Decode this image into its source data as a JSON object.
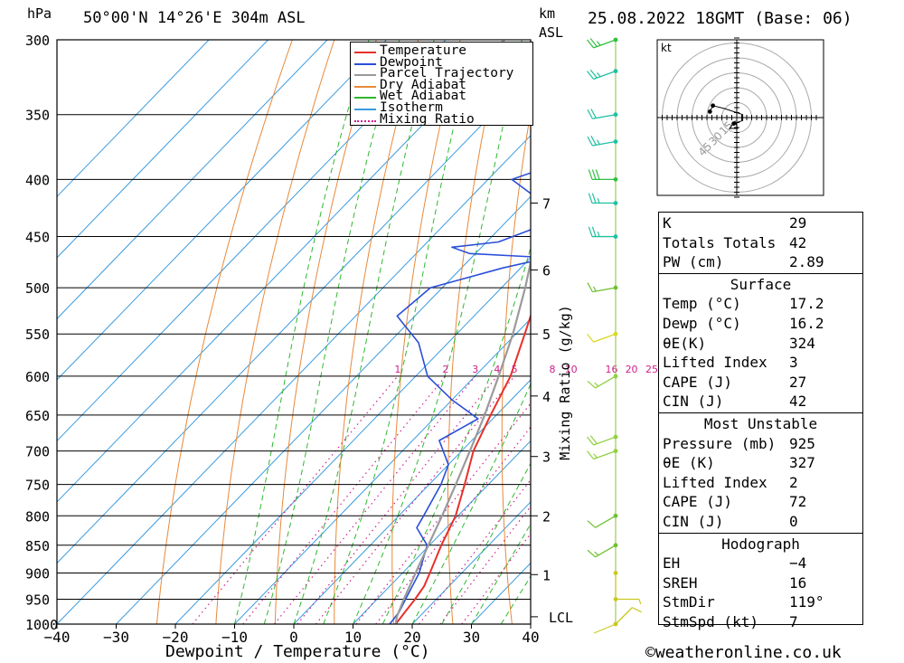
{
  "header": {
    "pressure_unit": "hPa",
    "location": "50°00'N 14°26'E 304m ASL",
    "height_unit_top": "km",
    "height_unit_bottom": "ASL",
    "datetime": "25.08.2022 18GMT (Base: 06)"
  },
  "footer": {
    "xlabel": "Dewpoint / Temperature (°C)",
    "copyright": "©weatheronline.co.uk"
  },
  "legend": [
    {
      "label": "Temperature",
      "color": "#e8302a",
      "style": "solid"
    },
    {
      "label": "Dewpoint",
      "color": "#2a4fd8",
      "style": "solid"
    },
    {
      "label": "Parcel Trajectory",
      "color": "#9a9a9a",
      "style": "solid"
    },
    {
      "label": "Dry Adiabat",
      "color": "#e8893a",
      "style": "solid"
    },
    {
      "label": "Wet Adiabat",
      "color": "#2fb82f",
      "style": "solid"
    },
    {
      "label": "Isotherm",
      "color": "#3a9be0",
      "style": "solid"
    },
    {
      "label": "Mixing Ratio",
      "color": "#d0208c",
      "style": "dotted"
    }
  ],
  "chart_data": {
    "type": "line",
    "subtype": "skew-T log-P diagram",
    "xlabel": "Dewpoint / Temperature (°C)",
    "ylabel": "hPa",
    "y2label": "Mixing Ratio (g/kg)",
    "xlim": [
      -40,
      40
    ],
    "ylim": [
      1000,
      300
    ],
    "y_scale": "log",
    "x_ticks": [
      -40,
      -30,
      -20,
      -10,
      0,
      10,
      20,
      30,
      40
    ],
    "x_tick_labels": [
      "−40",
      "−30",
      "−20",
      "−10",
      "0",
      "10",
      "20",
      "30",
      "40"
    ],
    "pressure_levels": [
      300,
      350,
      400,
      450,
      500,
      550,
      600,
      650,
      700,
      750,
      800,
      850,
      900,
      950,
      1000
    ],
    "height_km_ticks": [
      {
        "km": 1,
        "p": 903
      },
      {
        "km": 2,
        "p": 800
      },
      {
        "km": 3,
        "p": 708
      },
      {
        "km": 4,
        "p": 625
      },
      {
        "km": 5,
        "p": 550
      },
      {
        "km": 6,
        "p": 482
      },
      {
        "km": 7,
        "p": 420
      }
    ],
    "lcl": {
      "label": "LCL",
      "p": 985
    },
    "mixing_ratio_labels": [
      "1",
      "2",
      "3",
      "4",
      "5",
      "8",
      "10",
      "16",
      "20",
      "25"
    ],
    "mixing_ratio_values": [
      1,
      2,
      3,
      4,
      5,
      8,
      10,
      16,
      20,
      25
    ],
    "mixing_ratio_label_p": 600,
    "isotherms": [
      -110,
      -100,
      -90,
      -80,
      -70,
      -60,
      -50,
      -40,
      -30,
      -20,
      -10,
      0,
      10,
      20,
      30,
      40
    ],
    "dry_adiabats_K": [
      250,
      260,
      270,
      280,
      290,
      300,
      310,
      320,
      330,
      340,
      350,
      360,
      370,
      380,
      390,
      400,
      410,
      420,
      430,
      440
    ],
    "wet_adiabats_C": [
      -10,
      -5,
      0,
      5,
      10,
      15,
      20,
      25,
      30,
      35
    ],
    "series": [
      {
        "name": "Temperature",
        "points": [
          {
            "p": 1000,
            "t": 17.2
          },
          {
            "p": 975,
            "t": 16.8
          },
          {
            "p": 950,
            "t": 16.4
          },
          {
            "p": 925,
            "t": 15.8
          },
          {
            "p": 900,
            "t": 14.6
          },
          {
            "p": 850,
            "t": 12.0
          },
          {
            "p": 800,
            "t": 9.6
          },
          {
            "p": 750,
            "t": 6.0
          },
          {
            "p": 700,
            "t": 2.0
          },
          {
            "p": 650,
            "t": -1.0
          },
          {
            "p": 600,
            "t": -4.0
          },
          {
            "p": 550,
            "t": -8.5
          },
          {
            "p": 500,
            "t": -13.5
          },
          {
            "p": 470,
            "t": -18.0
          },
          {
            "p": 450,
            "t": -19.5
          },
          {
            "p": 430,
            "t": -23.0
          },
          {
            "p": 400,
            "t": -27.0
          },
          {
            "p": 350,
            "t": -35.0
          },
          {
            "p": 300,
            "t": -44.0
          }
        ]
      },
      {
        "name": "Dewpoint",
        "points": [
          {
            "p": 1000,
            "t": 16.2
          },
          {
            "p": 975,
            "t": 15.8
          },
          {
            "p": 950,
            "t": 14.8
          },
          {
            "p": 925,
            "t": 13.8
          },
          {
            "p": 900,
            "t": 12.8
          },
          {
            "p": 850,
            "t": 9.6
          },
          {
            "p": 820,
            "t": 5.0
          },
          {
            "p": 800,
            "t": 4.2
          },
          {
            "p": 750,
            "t": 2.0
          },
          {
            "p": 720,
            "t": 0.0
          },
          {
            "p": 685,
            "t": -5.5
          },
          {
            "p": 655,
            "t": -2.5
          },
          {
            "p": 630,
            "t": -10.0
          },
          {
            "p": 600,
            "t": -18.0
          },
          {
            "p": 560,
            "t": -25.0
          },
          {
            "p": 530,
            "t": -33.0
          },
          {
            "p": 500,
            "t": -32.0
          },
          {
            "p": 480,
            "t": -23.0
          },
          {
            "p": 470,
            "t": -17.0
          },
          {
            "p": 466,
            "t": -31.0
          },
          {
            "p": 460,
            "t": -35.0
          },
          {
            "p": 455,
            "t": -28.0
          },
          {
            "p": 420,
            "t": -17.0
          },
          {
            "p": 415,
            "t": -29.0
          },
          {
            "p": 400,
            "t": -36.0
          },
          {
            "p": 390,
            "t": -32.0
          },
          {
            "p": 350,
            "t": -38.0
          },
          {
            "p": 300,
            "t": -46.0
          }
        ]
      },
      {
        "name": "Parcel Trajectory",
        "points": [
          {
            "p": 1000,
            "t": 17.2
          },
          {
            "p": 985,
            "t": 16.2
          },
          {
            "p": 950,
            "t": 14.5
          },
          {
            "p": 900,
            "t": 12.2
          },
          {
            "p": 850,
            "t": 9.8
          },
          {
            "p": 800,
            "t": 7.3
          },
          {
            "p": 750,
            "t": 4.5
          },
          {
            "p": 700,
            "t": 1.4
          },
          {
            "p": 650,
            "t": -2.0
          },
          {
            "p": 600,
            "t": -6.0
          },
          {
            "p": 550,
            "t": -10.5
          },
          {
            "p": 500,
            "t": -16.0
          },
          {
            "p": 450,
            "t": -22.5
          },
          {
            "p": 400,
            "t": -30.0
          },
          {
            "p": 350,
            "t": -39.5
          },
          {
            "p": 300,
            "t": -51.0
          }
        ]
      }
    ]
  },
  "wind_profile": [
    {
      "p": 1000,
      "dir": 45,
      "kt": 10,
      "color": "#c8c820"
    },
    {
      "p": 950,
      "dir": 90,
      "kt": 5,
      "color": "#c8c820"
    },
    {
      "p": 900,
      "dir": 180,
      "kt": 3,
      "color": "#c8c820"
    },
    {
      "p": 850,
      "dir": 240,
      "kt": 15,
      "color": "#70c030"
    },
    {
      "p": 800,
      "dir": 240,
      "kt": 12,
      "color": "#70c030"
    },
    {
      "p": 700,
      "dir": 250,
      "kt": 18,
      "color": "#90d040"
    },
    {
      "p": 680,
      "dir": 250,
      "kt": 20,
      "color": "#90d040"
    },
    {
      "p": 600,
      "dir": 240,
      "kt": 15,
      "color": "#90d040"
    },
    {
      "p": 550,
      "dir": 250,
      "kt": 10,
      "color": "#d8d820"
    },
    {
      "p": 500,
      "dir": 260,
      "kt": 15,
      "color": "#70c030"
    },
    {
      "p": 450,
      "dir": 270,
      "kt": 25,
      "color": "#20c0a0"
    },
    {
      "p": 420,
      "dir": 270,
      "kt": 25,
      "color": "#20c0a0"
    },
    {
      "p": 400,
      "dir": 270,
      "kt": 30,
      "color": "#30c040"
    },
    {
      "p": 370,
      "dir": 260,
      "kt": 25,
      "color": "#20c0a0"
    },
    {
      "p": 350,
      "dir": 260,
      "kt": 20,
      "color": "#20c0a0"
    },
    {
      "p": 320,
      "dir": 250,
      "kt": 25,
      "color": "#20c0a0"
    },
    {
      "p": 300,
      "dir": 250,
      "kt": 25,
      "color": "#30c040"
    }
  ],
  "hodograph": {
    "unit": "kt",
    "ring_labels": [
      "15",
      "30",
      "45"
    ],
    "trace_kt": [
      [
        -1,
        -2
      ],
      [
        2,
        -1
      ],
      [
        2,
        1
      ],
      [
        -4,
        3
      ],
      [
        -8,
        4
      ],
      [
        -9,
        2
      ]
    ],
    "storm_motion_label": "+"
  },
  "indices": {
    "rows": [
      {
        "label": "K",
        "value": "29"
      },
      {
        "label": "Totals Totals",
        "value": "42"
      },
      {
        "label": "PW (cm)",
        "value": "2.89"
      }
    ]
  },
  "surface": {
    "title": "Surface",
    "rows": [
      {
        "label": "Temp (°C)",
        "value": "17.2"
      },
      {
        "label": "Dewp (°C)",
        "value": "16.2"
      },
      {
        "label": "θE(K)",
        "value": "324"
      },
      {
        "label": "Lifted Index",
        "value": "3"
      },
      {
        "label": "CAPE (J)",
        "value": "27"
      },
      {
        "label": "CIN (J)",
        "value": "42"
      }
    ]
  },
  "most_unstable": {
    "title": "Most Unstable",
    "rows": [
      {
        "label": "Pressure (mb)",
        "value": "925"
      },
      {
        "label": "θE (K)",
        "value": "327"
      },
      {
        "label": "Lifted Index",
        "value": "2"
      },
      {
        "label": "CAPE (J)",
        "value": "72"
      },
      {
        "label": "CIN (J)",
        "value": "0"
      }
    ]
  },
  "hodograph_table": {
    "title": "Hodograph",
    "rows": [
      {
        "label": "EH",
        "value": "−4"
      },
      {
        "label": "SREH",
        "value": "16"
      },
      {
        "label": "StmDir",
        "value": "119°"
      },
      {
        "label": "StmSpd (kt)",
        "value": "7"
      }
    ]
  }
}
